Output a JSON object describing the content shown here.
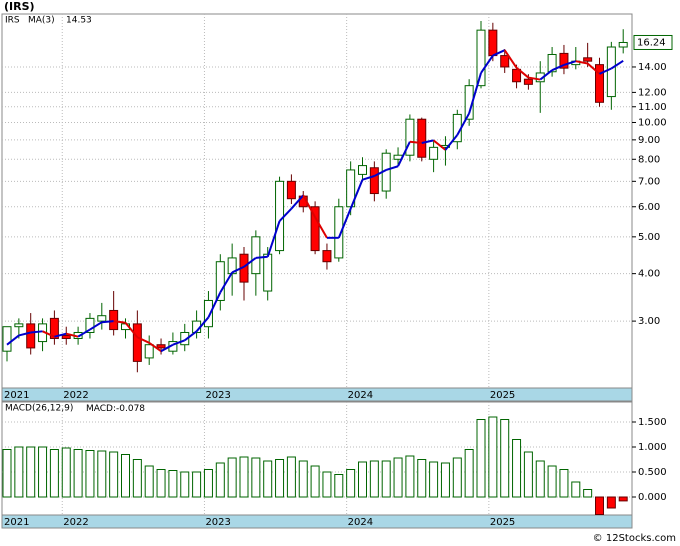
{
  "chart_data": [
    {
      "type": "candlestick",
      "title": "(IRS)",
      "series_name": "IRS",
      "ma_name": "MA(3)",
      "log_scale": true,
      "grid": true,
      "up_color": "#006400",
      "down_color": "#ff0000",
      "ma_up_color": "#0000cc",
      "ma_down_color": "#dd0000",
      "name_color": "#008000",
      "categories": [
        "2021",
        null,
        null,
        null,
        null,
        "2022",
        null,
        null,
        null,
        null,
        null,
        null,
        null,
        null,
        null,
        null,
        null,
        "2023",
        null,
        null,
        null,
        null,
        null,
        null,
        null,
        null,
        null,
        null,
        null,
        "2024",
        null,
        null,
        null,
        null,
        null,
        null,
        null,
        null,
        null,
        null,
        null,
        "2025",
        null,
        null,
        null,
        null,
        null,
        null,
        null,
        null,
        null,
        null,
        null
      ],
      "open": [
        2.5,
        2.9,
        2.95,
        2.65,
        3.05,
        2.75,
        2.7,
        2.8,
        3.0,
        3.2,
        2.85,
        2.95,
        2.4,
        2.6,
        2.5,
        2.6,
        2.8,
        2.9,
        3.4,
        4.0,
        4.5,
        4.0,
        3.6,
        4.6,
        7.0,
        6.4,
        6.0,
        4.6,
        4.4,
        6.0,
        7.3,
        7.6,
        6.6,
        8.0,
        8.2,
        10.2,
        8.0,
        8.6,
        8.9,
        10.2,
        12.5,
        17.5,
        15.0,
        13.8,
        13.0,
        12.8,
        13.6,
        15.2,
        14.2,
        14.8,
        14.2,
        11.7,
        15.8
      ],
      "high": [
        2.75,
        3.05,
        3.15,
        3.05,
        3.2,
        2.9,
        2.9,
        3.15,
        3.35,
        3.6,
        3.05,
        3.2,
        2.75,
        2.7,
        2.8,
        2.95,
        3.2,
        3.6,
        4.5,
        4.8,
        4.7,
        5.2,
        4.7,
        7.2,
        7.3,
        6.6,
        6.2,
        4.8,
        6.3,
        7.9,
        8.1,
        7.9,
        8.5,
        8.6,
        10.5,
        10.3,
        9.0,
        9.2,
        10.8,
        13.0,
        18.5,
        18.3,
        15.6,
        14.2,
        13.4,
        14.5,
        15.8,
        16.0,
        15.8,
        16.2,
        14.8,
        16.3,
        17.6
      ],
      "low": [
        2.35,
        2.7,
        2.45,
        2.5,
        2.6,
        2.6,
        2.6,
        2.7,
        2.85,
        2.75,
        2.7,
        2.2,
        2.3,
        2.45,
        2.45,
        2.5,
        2.7,
        2.7,
        3.2,
        3.5,
        3.4,
        3.5,
        3.4,
        4.5,
        6.1,
        5.8,
        4.5,
        4.1,
        4.3,
        5.7,
        7.0,
        6.2,
        6.3,
        7.7,
        7.9,
        7.9,
        7.4,
        7.7,
        8.5,
        9.8,
        12.3,
        14.5,
        13.5,
        12.3,
        12.2,
        10.6,
        13.2,
        13.4,
        13.8,
        14.0,
        11.0,
        10.8,
        15.2
      ],
      "close": [
        2.9,
        2.95,
        2.55,
        2.95,
        2.7,
        2.7,
        2.8,
        3.05,
        3.1,
        2.85,
        2.95,
        2.35,
        2.6,
        2.55,
        2.65,
        2.8,
        3.0,
        3.4,
        4.3,
        4.4,
        3.8,
        5.0,
        4.5,
        7.0,
        6.3,
        6.0,
        4.6,
        4.3,
        6.0,
        7.5,
        7.7,
        6.5,
        8.3,
        8.2,
        10.2,
        8.1,
        8.6,
        8.7,
        10.5,
        12.5,
        17.5,
        15.0,
        14.0,
        12.8,
        12.6,
        13.5,
        15.1,
        13.9,
        14.5,
        14.5,
        11.3,
        15.8,
        16.24
      ],
      "ma": [
        2.6,
        2.75,
        2.8,
        2.82,
        2.73,
        2.78,
        2.73,
        2.85,
        2.98,
        3.0,
        2.97,
        2.72,
        2.63,
        2.5,
        2.6,
        2.67,
        2.82,
        3.07,
        3.57,
        4.03,
        4.17,
        4.4,
        4.43,
        5.5,
        5.93,
        6.43,
        5.63,
        4.97,
        4.97,
        5.93,
        7.07,
        7.23,
        7.5,
        7.67,
        8.9,
        8.83,
        8.97,
        8.47,
        9.27,
        10.57,
        13.5,
        15.0,
        15.5,
        13.93,
        13.13,
        12.97,
        13.73,
        14.17,
        14.5,
        14.3,
        13.43,
        13.87,
        14.53
      ],
      "ylim": [
        2.0,
        19.3
      ],
      "yticks": [
        {
          "value": 3,
          "label": "3.00"
        },
        {
          "value": 4,
          "label": "4.00"
        },
        {
          "value": 5,
          "label": "5.00"
        },
        {
          "value": 6,
          "label": "6.00"
        },
        {
          "value": 7,
          "label": "7.00"
        },
        {
          "value": 8,
          "label": "8.00"
        },
        {
          "value": 9,
          "label": "9.00"
        },
        {
          "value": 10,
          "label": "10.00"
        },
        {
          "value": 11,
          "label": "11.00"
        },
        {
          "value": 12,
          "label": "12.00"
        },
        {
          "value": 14,
          "label": "14.00"
        }
      ]
    },
    {
      "type": "bar",
      "name": "MACD(26,12,9)",
      "value_prefix": "MACD:",
      "grid": true,
      "up_color": "#006400",
      "down_color": "#ff0000",
      "name_color": "#0000cc",
      "categories": [
        "2021",
        null,
        null,
        null,
        null,
        "2022",
        null,
        null,
        null,
        null,
        null,
        null,
        null,
        null,
        null,
        null,
        null,
        "2023",
        null,
        null,
        null,
        null,
        null,
        null,
        null,
        null,
        null,
        null,
        null,
        "2024",
        null,
        null,
        null,
        null,
        null,
        null,
        null,
        null,
        null,
        null,
        null,
        "2025",
        null,
        null,
        null,
        null,
        null,
        null,
        null,
        null,
        null,
        null,
        null
      ],
      "values": [
        0.95,
        1.0,
        1.0,
        1.0,
        0.95,
        0.98,
        0.95,
        0.93,
        0.92,
        0.9,
        0.85,
        0.75,
        0.62,
        0.55,
        0.53,
        0.5,
        0.5,
        0.55,
        0.68,
        0.78,
        0.8,
        0.78,
        0.72,
        0.75,
        0.8,
        0.72,
        0.62,
        0.5,
        0.45,
        0.55,
        0.7,
        0.72,
        0.72,
        0.78,
        0.82,
        0.75,
        0.7,
        0.68,
        0.78,
        0.95,
        1.55,
        1.6,
        1.55,
        1.15,
        0.9,
        0.72,
        0.62,
        0.55,
        0.3,
        0.15,
        -0.35,
        -0.22,
        -0.078
      ],
      "ylim": [
        -0.36,
        1.9
      ],
      "yticks": [
        {
          "value": 0,
          "label": "0.000"
        },
        {
          "value": 0.5,
          "label": "0.500"
        },
        {
          "value": 1,
          "label": "1.000"
        },
        {
          "value": 1.5,
          "label": "1.500"
        }
      ]
    }
  ],
  "footer": "© 12Stocks.com"
}
